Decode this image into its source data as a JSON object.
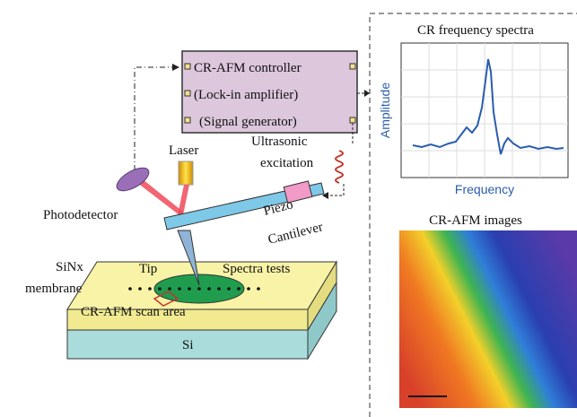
{
  "controller": {
    "lines": [
      "CR-AFM controller",
      "(Lock-in amplifier)",
      "(Signal generator)"
    ]
  },
  "labels": {
    "laser": "Laser",
    "excitation": [
      "Ultrasonic",
      "excitation"
    ],
    "photodetector": "Photodetector",
    "piezo": "Piezo",
    "cantilever": "Cantilever",
    "membrane": [
      "SiNx",
      "membrane"
    ],
    "tip": "Tip",
    "spectra_tests": "Spectra tests",
    "scan_area": "CR-AFM scan area",
    "substrate": "Si"
  },
  "spectrum_panel": {
    "title": "CR frequency spectra",
    "y_label": "Amplitude",
    "x_label": "Frequency"
  },
  "image_panel": {
    "title": "CR-AFM images"
  }
}
